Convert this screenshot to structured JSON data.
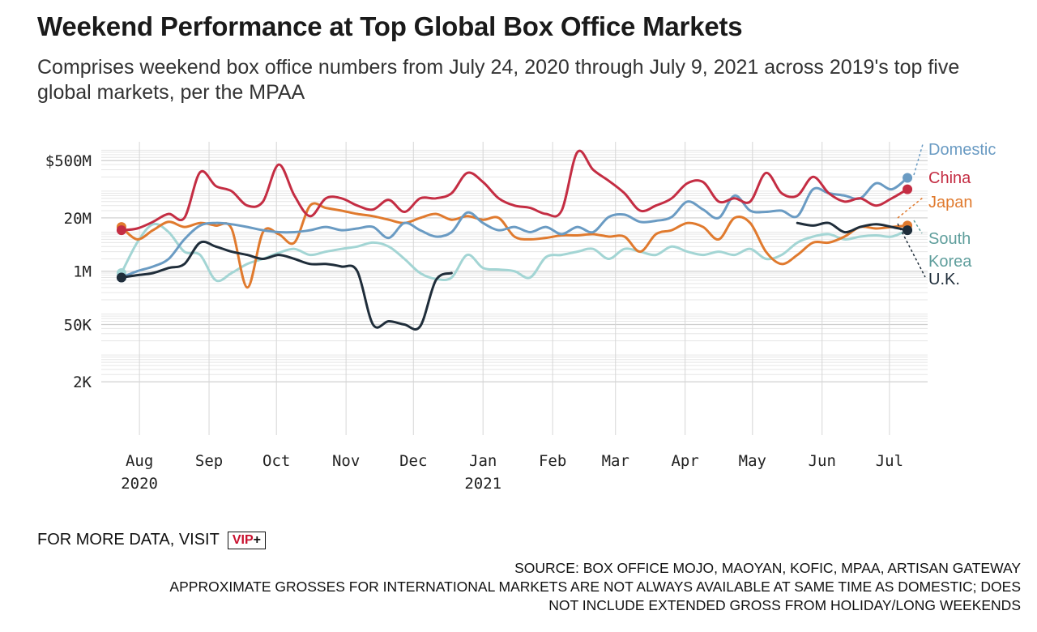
{
  "title": "Weekend Performance at Top Global Box Office Markets",
  "subtitle": "Comprises weekend box office numbers from July 24, 2020 through July 9, 2021 across 2019's top five global markets, per the MPAA",
  "more_data": {
    "text": "FOR MORE DATA, VISIT",
    "badge_main": "VIP",
    "badge_plus": "+"
  },
  "footnotes": [
    "SOURCE: BOX OFFICE MOJO, MAOYAN, KOFIC, MPAA, ARTISAN GATEWAY",
    "APPROXIMATE GROSSES FOR INTERNATIONAL MARKETS ARE NOT ALWAYS AVAILABLE AT SAME TIME AS DOMESTIC; DOES",
    "NOT INCLUDE EXTENDED GROSS FROM HOLIDAY/LONG WEEKENDS"
  ],
  "chart_data": {
    "type": "line",
    "y_scale": "log",
    "ylim": [
      100,
      1000000000
    ],
    "y_ticks": [
      {
        "value": 2000,
        "label": "2K"
      },
      {
        "value": 50000,
        "label": "50K"
      },
      {
        "value": 1000000,
        "label": "1M"
      },
      {
        "value": 20000000,
        "label": "20M"
      },
      {
        "value": 500000000,
        "label": "$500M"
      }
    ],
    "xlim": [
      "2020-07-15",
      "2021-07-18"
    ],
    "x_ticks": [
      {
        "date": "2020-08-01",
        "label": "Aug",
        "sub": "2020"
      },
      {
        "date": "2020-09-01",
        "label": "Sep",
        "sub": ""
      },
      {
        "date": "2020-10-01",
        "label": "Oct",
        "sub": ""
      },
      {
        "date": "2020-11-01",
        "label": "Nov",
        "sub": ""
      },
      {
        "date": "2020-12-01",
        "label": "Dec",
        "sub": ""
      },
      {
        "date": "2021-01-01",
        "label": "Jan",
        "sub": "2021"
      },
      {
        "date": "2021-02-01",
        "label": "Feb",
        "sub": ""
      },
      {
        "date": "2021-03-01",
        "label": "Mar",
        "sub": ""
      },
      {
        "date": "2021-04-01",
        "label": "Apr",
        "sub": ""
      },
      {
        "date": "2021-05-01",
        "label": "May",
        "sub": ""
      },
      {
        "date": "2021-06-01",
        "label": "Jun",
        "sub": ""
      },
      {
        "date": "2021-07-01",
        "label": "Jul",
        "sub": ""
      }
    ],
    "grid": true,
    "series": [
      {
        "name": "South Korea",
        "label_lines": [
          "South",
          "Korea"
        ],
        "color": "#a3d5d4",
        "label_color": "#5f9e9c",
        "points": [
          [
            "2020-07-24",
            900000
          ],
          [
            "2020-07-31",
            5000000
          ],
          [
            "2020-08-07",
            14000000
          ],
          [
            "2020-08-14",
            9000000
          ],
          [
            "2020-08-21",
            3000000
          ],
          [
            "2020-08-28",
            2500000
          ],
          [
            "2020-09-04",
            600000
          ],
          [
            "2020-09-11",
            900000
          ],
          [
            "2020-09-18",
            1500000
          ],
          [
            "2020-09-25",
            2000000
          ],
          [
            "2020-10-02",
            2800000
          ],
          [
            "2020-10-09",
            3500000
          ],
          [
            "2020-10-16",
            2500000
          ],
          [
            "2020-10-23",
            3000000
          ],
          [
            "2020-10-30",
            3500000
          ],
          [
            "2020-11-06",
            4000000
          ],
          [
            "2020-11-13",
            5000000
          ],
          [
            "2020-11-20",
            4000000
          ],
          [
            "2020-11-27",
            2000000
          ],
          [
            "2020-12-04",
            900000
          ],
          [
            "2020-12-11",
            650000
          ],
          [
            "2020-12-18",
            700000
          ],
          [
            "2020-12-25",
            2500000
          ],
          [
            "2021-01-01",
            1200000
          ],
          [
            "2021-01-08",
            1100000
          ],
          [
            "2021-01-15",
            1000000
          ],
          [
            "2021-01-22",
            700000
          ],
          [
            "2021-01-29",
            2200000
          ],
          [
            "2021-02-05",
            2500000
          ],
          [
            "2021-02-12",
            3000000
          ],
          [
            "2021-02-19",
            3500000
          ],
          [
            "2021-02-26",
            2000000
          ],
          [
            "2021-03-05",
            3500000
          ],
          [
            "2021-03-12",
            3000000
          ],
          [
            "2021-03-19",
            2500000
          ],
          [
            "2021-03-26",
            4000000
          ],
          [
            "2021-04-02",
            3000000
          ],
          [
            "2021-04-09",
            2500000
          ],
          [
            "2021-04-16",
            3000000
          ],
          [
            "2021-04-23",
            2500000
          ],
          [
            "2021-04-30",
            3500000
          ],
          [
            "2021-05-07",
            2000000
          ],
          [
            "2021-05-14",
            2500000
          ],
          [
            "2021-05-21",
            5000000
          ],
          [
            "2021-05-28",
            7000000
          ],
          [
            "2021-06-04",
            8000000
          ],
          [
            "2021-06-11",
            6000000
          ],
          [
            "2021-06-18",
            7000000
          ],
          [
            "2021-06-25",
            7500000
          ],
          [
            "2021-07-02",
            7000000
          ],
          [
            "2021-07-09",
            10000000
          ]
        ]
      },
      {
        "name": "Japan",
        "label_lines": [
          "Japan"
        ],
        "color": "#e07a2e",
        "label_color": "#e07a2e",
        "points": [
          [
            "2020-07-24",
            12000000
          ],
          [
            "2020-07-31",
            6000000
          ],
          [
            "2020-08-07",
            10000000
          ],
          [
            "2020-08-14",
            16000000
          ],
          [
            "2020-08-21",
            12000000
          ],
          [
            "2020-08-28",
            15000000
          ],
          [
            "2020-09-04",
            13000000
          ],
          [
            "2020-09-11",
            11000000
          ],
          [
            "2020-09-18",
            400000
          ],
          [
            "2020-09-25",
            9000000
          ],
          [
            "2020-10-02",
            8000000
          ],
          [
            "2020-10-09",
            5000000
          ],
          [
            "2020-10-16",
            40000000
          ],
          [
            "2020-10-23",
            35000000
          ],
          [
            "2020-10-30",
            30000000
          ],
          [
            "2020-11-06",
            25000000
          ],
          [
            "2020-11-13",
            22000000
          ],
          [
            "2020-11-20",
            18000000
          ],
          [
            "2020-11-27",
            15000000
          ],
          [
            "2020-12-04",
            20000000
          ],
          [
            "2020-12-11",
            25000000
          ],
          [
            "2020-12-18",
            18000000
          ],
          [
            "2020-12-25",
            22000000
          ],
          [
            "2021-01-01",
            18000000
          ],
          [
            "2021-01-08",
            20000000
          ],
          [
            "2021-01-15",
            7000000
          ],
          [
            "2021-01-22",
            6000000
          ],
          [
            "2021-01-29",
            6500000
          ],
          [
            "2021-02-05",
            7500000
          ],
          [
            "2021-02-12",
            7500000
          ],
          [
            "2021-02-19",
            8000000
          ],
          [
            "2021-02-26",
            7000000
          ],
          [
            "2021-03-05",
            7000000
          ],
          [
            "2021-03-12",
            3000000
          ],
          [
            "2021-03-19",
            8000000
          ],
          [
            "2021-03-26",
            10000000
          ],
          [
            "2021-04-02",
            15000000
          ],
          [
            "2021-04-09",
            12000000
          ],
          [
            "2021-04-16",
            6000000
          ],
          [
            "2021-04-23",
            20000000
          ],
          [
            "2021-04-30",
            15000000
          ],
          [
            "2021-05-07",
            3000000
          ],
          [
            "2021-05-14",
            1500000
          ],
          [
            "2021-05-21",
            2500000
          ],
          [
            "2021-05-28",
            5000000
          ],
          [
            "2021-06-04",
            5000000
          ],
          [
            "2021-06-11",
            7000000
          ],
          [
            "2021-06-18",
            12000000
          ],
          [
            "2021-06-25",
            11000000
          ],
          [
            "2021-07-02",
            12000000
          ],
          [
            "2021-07-09",
            13000000
          ]
        ]
      },
      {
        "name": "Domestic",
        "label_lines": [
          "Domestic"
        ],
        "color": "#6a9bc3",
        "label_color": "#6a9bc3",
        "points": [
          [
            "2020-07-24",
            700000
          ],
          [
            "2020-07-31",
            1000000
          ],
          [
            "2020-08-07",
            1300000
          ],
          [
            "2020-08-14",
            2000000
          ],
          [
            "2020-08-21",
            6000000
          ],
          [
            "2020-08-28",
            13000000
          ],
          [
            "2020-09-04",
            15000000
          ],
          [
            "2020-09-11",
            14000000
          ],
          [
            "2020-09-18",
            12000000
          ],
          [
            "2020-09-25",
            10000000
          ],
          [
            "2020-10-02",
            9000000
          ],
          [
            "2020-10-09",
            9000000
          ],
          [
            "2020-10-16",
            10000000
          ],
          [
            "2020-10-23",
            12000000
          ],
          [
            "2020-10-30",
            10000000
          ],
          [
            "2020-11-06",
            11000000
          ],
          [
            "2020-11-13",
            12000000
          ],
          [
            "2020-11-20",
            6500000
          ],
          [
            "2020-11-27",
            15000000
          ],
          [
            "2020-12-04",
            10000000
          ],
          [
            "2020-12-11",
            7000000
          ],
          [
            "2020-12-18",
            9000000
          ],
          [
            "2020-12-25",
            27000000
          ],
          [
            "2021-01-01",
            15000000
          ],
          [
            "2021-01-08",
            10000000
          ],
          [
            "2021-01-15",
            12000000
          ],
          [
            "2021-01-22",
            9000000
          ],
          [
            "2021-01-29",
            12000000
          ],
          [
            "2021-02-05",
            8000000
          ],
          [
            "2021-02-12",
            12000000
          ],
          [
            "2021-02-19",
            9000000
          ],
          [
            "2021-02-26",
            21000000
          ],
          [
            "2021-03-05",
            24000000
          ],
          [
            "2021-03-12",
            16000000
          ],
          [
            "2021-03-19",
            17000000
          ],
          [
            "2021-03-26",
            21000000
          ],
          [
            "2021-04-02",
            50000000
          ],
          [
            "2021-04-09",
            32000000
          ],
          [
            "2021-04-16",
            20000000
          ],
          [
            "2021-04-23",
            70000000
          ],
          [
            "2021-04-30",
            30000000
          ],
          [
            "2021-05-07",
            28000000
          ],
          [
            "2021-05-14",
            30000000
          ],
          [
            "2021-05-21",
            22000000
          ],
          [
            "2021-05-28",
            100000000
          ],
          [
            "2021-06-04",
            80000000
          ],
          [
            "2021-06-11",
            70000000
          ],
          [
            "2021-06-18",
            60000000
          ],
          [
            "2021-06-25",
            140000000
          ],
          [
            "2021-07-02",
            100000000
          ],
          [
            "2021-07-09",
            190000000
          ]
        ]
      },
      {
        "name": "China",
        "label_lines": [
          "China"
        ],
        "color": "#c42d43",
        "label_color": "#c42d43",
        "points": [
          [
            "2020-07-24",
            10000000
          ],
          [
            "2020-07-31",
            11000000
          ],
          [
            "2020-08-07",
            16000000
          ],
          [
            "2020-08-14",
            25000000
          ],
          [
            "2020-08-21",
            20000000
          ],
          [
            "2020-08-28",
            260000000
          ],
          [
            "2020-09-04",
            120000000
          ],
          [
            "2020-09-11",
            90000000
          ],
          [
            "2020-09-18",
            40000000
          ],
          [
            "2020-09-25",
            50000000
          ],
          [
            "2020-10-02",
            400000000
          ],
          [
            "2020-10-09",
            70000000
          ],
          [
            "2020-10-16",
            22000000
          ],
          [
            "2020-10-23",
            60000000
          ],
          [
            "2020-10-30",
            60000000
          ],
          [
            "2020-11-06",
            40000000
          ],
          [
            "2020-11-13",
            32000000
          ],
          [
            "2020-11-20",
            55000000
          ],
          [
            "2020-11-27",
            28000000
          ],
          [
            "2020-12-04",
            60000000
          ],
          [
            "2020-12-11",
            60000000
          ],
          [
            "2020-12-18",
            80000000
          ],
          [
            "2020-12-25",
            250000000
          ],
          [
            "2021-01-01",
            150000000
          ],
          [
            "2021-01-08",
            60000000
          ],
          [
            "2021-01-15",
            40000000
          ],
          [
            "2021-01-22",
            35000000
          ],
          [
            "2021-01-29",
            25000000
          ],
          [
            "2021-02-05",
            30000000
          ],
          [
            "2021-02-12",
            800000000
          ],
          [
            "2021-02-19",
            300000000
          ],
          [
            "2021-02-26",
            160000000
          ],
          [
            "2021-03-05",
            80000000
          ],
          [
            "2021-03-12",
            30000000
          ],
          [
            "2021-03-19",
            40000000
          ],
          [
            "2021-03-26",
            60000000
          ],
          [
            "2021-04-02",
            140000000
          ],
          [
            "2021-04-09",
            150000000
          ],
          [
            "2021-04-16",
            50000000
          ],
          [
            "2021-04-23",
            60000000
          ],
          [
            "2021-04-30",
            50000000
          ],
          [
            "2021-05-07",
            250000000
          ],
          [
            "2021-05-14",
            80000000
          ],
          [
            "2021-05-21",
            70000000
          ],
          [
            "2021-05-28",
            200000000
          ],
          [
            "2021-06-04",
            80000000
          ],
          [
            "2021-06-11",
            50000000
          ],
          [
            "2021-06-18",
            60000000
          ],
          [
            "2021-06-25",
            40000000
          ],
          [
            "2021-07-02",
            60000000
          ],
          [
            "2021-07-09",
            100000000
          ]
        ]
      },
      {
        "name": "U.K.",
        "label_lines": [
          "U.K."
        ],
        "color": "#1f2d3a",
        "label_color": "#1f2d3a",
        "points": [
          [
            "2020-07-24",
            700000
          ],
          [
            "2020-07-31",
            800000
          ],
          [
            "2020-08-07",
            900000
          ],
          [
            "2020-08-14",
            1200000
          ],
          [
            "2020-08-21",
            1500000
          ],
          [
            "2020-08-28",
            5000000
          ],
          [
            "2020-09-04",
            4000000
          ],
          [
            "2020-09-11",
            3000000
          ],
          [
            "2020-09-18",
            2500000
          ],
          [
            "2020-09-25",
            2000000
          ],
          [
            "2020-10-02",
            2500000
          ],
          [
            "2020-10-09",
            2000000
          ],
          [
            "2020-10-16",
            1500000
          ],
          [
            "2020-10-23",
            1500000
          ],
          [
            "2020-10-30",
            1300000
          ],
          [
            "2020-11-06",
            1000000
          ],
          [
            "2020-11-13",
            50000
          ],
          [
            "2020-11-20",
            60000
          ],
          [
            "2020-11-27",
            50000
          ],
          [
            "2020-12-04",
            45000
          ],
          [
            "2020-12-11",
            600000
          ],
          [
            "2020-12-18",
            900000
          ]
        ],
        "points_2": [
          [
            "2021-05-21",
            15000000
          ],
          [
            "2021-05-28",
            13000000
          ],
          [
            "2021-06-04",
            15000000
          ],
          [
            "2021-06-11",
            9000000
          ],
          [
            "2021-06-18",
            12000000
          ],
          [
            "2021-06-25",
            14000000
          ],
          [
            "2021-07-02",
            12000000
          ],
          [
            "2021-07-09",
            10000000
          ]
        ]
      }
    ]
  }
}
